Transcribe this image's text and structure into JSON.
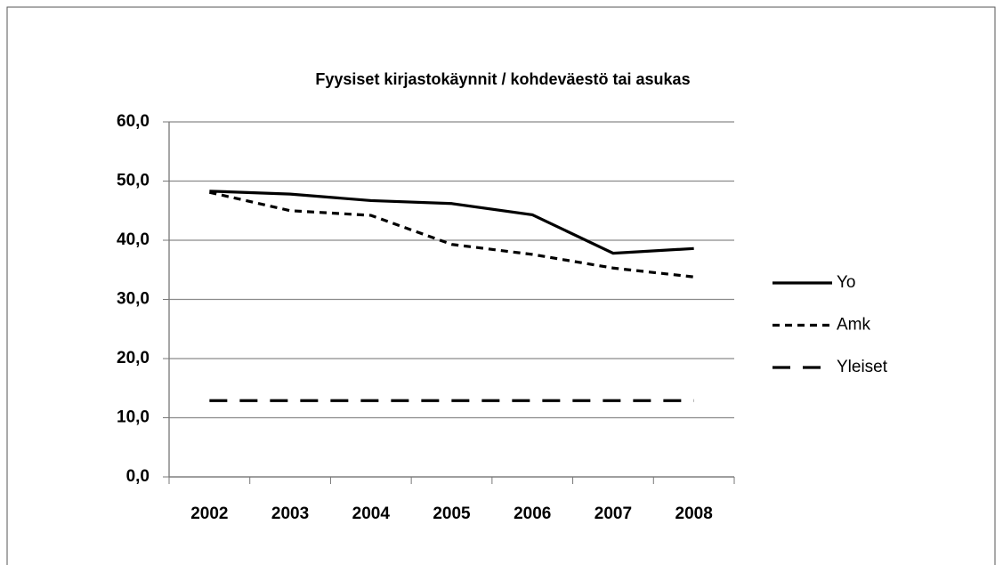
{
  "chart_data": {
    "type": "line",
    "title": "Fyysiset kirjastokäynnit / kohdeväestö tai asukas",
    "categories": [
      "2002",
      "2003",
      "2004",
      "2005",
      "2006",
      "2007",
      "2008"
    ],
    "series": [
      {
        "name": "Yo",
        "color": "#000000",
        "dash": "solid",
        "values": [
          48.3,
          47.8,
          46.7,
          46.2,
          44.3,
          37.8,
          38.6
        ]
      },
      {
        "name": "Amk",
        "color": "#000000",
        "dash": "short",
        "values": [
          48.1,
          45.0,
          44.2,
          39.3,
          37.6,
          35.3,
          33.8
        ]
      },
      {
        "name": "Yleiset",
        "color": "#000000",
        "dash": "long",
        "values": [
          12.9,
          12.9,
          12.9,
          12.9,
          12.9,
          12.9,
          12.9
        ]
      }
    ],
    "ylim": [
      0,
      60
    ],
    "yticks": [
      {
        "value": 0,
        "label": "0,0"
      },
      {
        "value": 10,
        "label": "10,0"
      },
      {
        "value": 20,
        "label": "20,0"
      },
      {
        "value": 30,
        "label": "30,0"
      },
      {
        "value": 40,
        "label": "40,0"
      },
      {
        "value": 50,
        "label": "50,0"
      },
      {
        "value": 60,
        "label": "60,0"
      }
    ],
    "grid": true,
    "legend": "right"
  }
}
